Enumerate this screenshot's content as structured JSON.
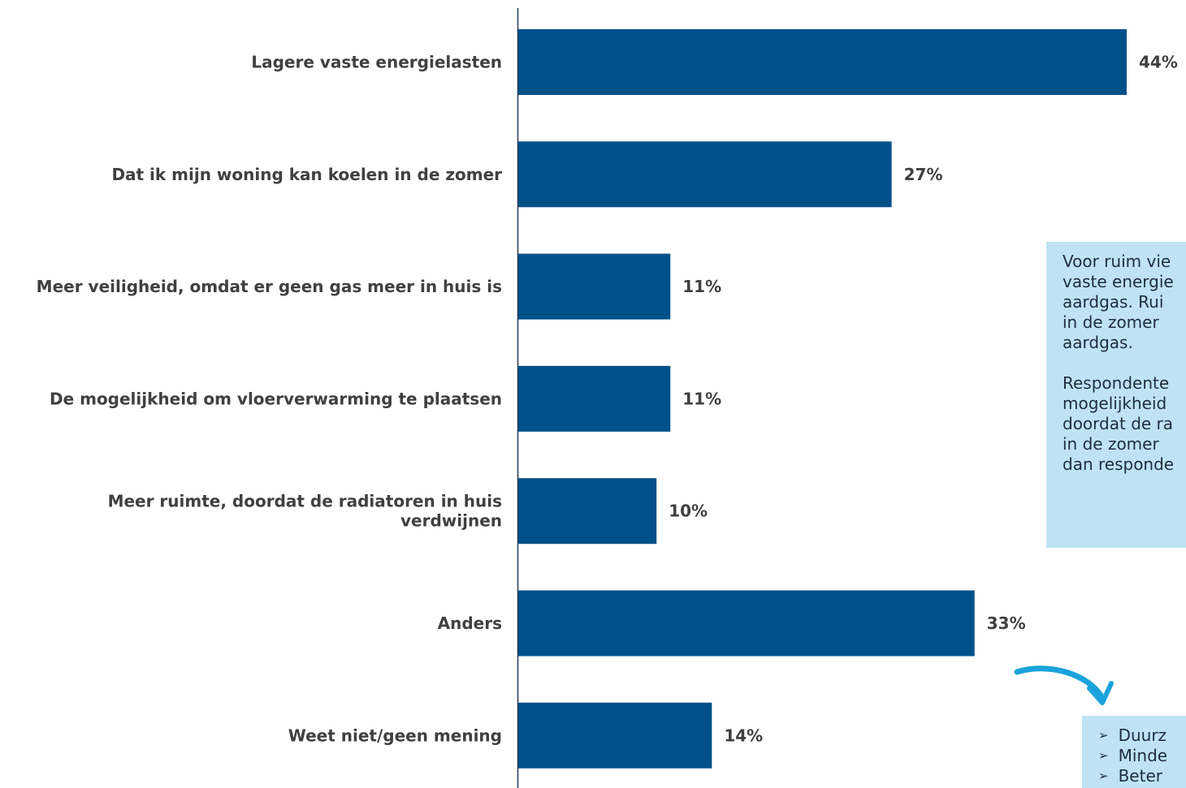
{
  "chart_data": {
    "type": "bar",
    "orientation": "horizontal",
    "categories": [
      [
        "Lagere vaste energielasten"
      ],
      [
        "Dat ik mijn woning kan koelen in de zomer"
      ],
      [
        "Meer veiligheid, omdat er geen gas meer in huis is"
      ],
      [
        "De mogelijkheid om vloerverwarming te plaatsen"
      ],
      [
        "Meer ruimte, doordat de radiatoren in huis",
        "verdwijnen"
      ],
      [
        "Anders"
      ],
      [
        "Weet niet/geen mening"
      ]
    ],
    "values": [
      44,
      27,
      11,
      11,
      10,
      33,
      14
    ],
    "data_labels": [
      "44%",
      "27%",
      "11%",
      "11%",
      "10%",
      "33%",
      "14%"
    ],
    "bar_color": "#00518a",
    "xlim": [
      0,
      44
    ]
  },
  "note": {
    "paragraph1": [
      "Voor ruim vie",
      "vaste energie",
      "aardgas. Rui",
      "in de zomer",
      "aardgas."
    ],
    "paragraph2": [
      "Respondente",
      "mogelijkheid",
      "doordat de ra",
      "in de zomer",
      "dan responde"
    ]
  },
  "other_list": [
    "Duurz",
    "Minde",
    "Beter"
  ],
  "colors": {
    "bar": "#00518a",
    "callout_bg": "#bfe3f5",
    "arrow": "#1aa3dc"
  }
}
